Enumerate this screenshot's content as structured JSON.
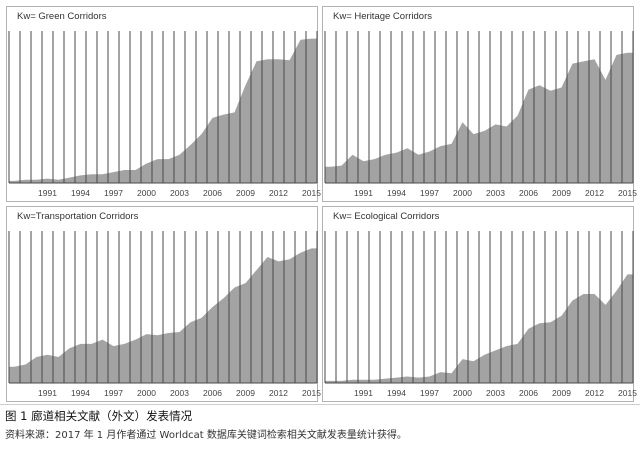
{
  "caption": "图 1  廊道相关文献（外文）发表情况",
  "source": "资料来源：2017 年 1 月作者通过 Worldcat 数据库关键词检索相关文献发表量统计获得。",
  "colors": {
    "fill": "#a3a3a3",
    "bar_line": "#4a4a4a",
    "frame": "#b3b3b3"
  },
  "chart_data": [
    {
      "type": "area",
      "title": "Kw= Green Corridors",
      "x": [
        1988,
        1989,
        1990,
        1991,
        1992,
        1993,
        1994,
        1995,
        1996,
        1997,
        1998,
        1999,
        2000,
        2001,
        2002,
        2003,
        2004,
        2005,
        2006,
        2007,
        2008,
        2009,
        2010,
        2011,
        2012,
        2013,
        2014,
        2015
      ],
      "values": [
        2,
        3,
        3,
        4,
        3,
        5,
        7,
        8,
        8,
        10,
        12,
        12,
        18,
        22,
        22,
        26,
        35,
        45,
        60,
        63,
        65,
        90,
        112,
        114,
        114,
        113,
        132,
        133
      ],
      "x_ticks": [
        1991,
        1994,
        1997,
        2000,
        2003,
        2006,
        2009,
        2012,
        2015
      ],
      "ylim": [
        0,
        140
      ],
      "grid": "vertical"
    },
    {
      "type": "area",
      "title": "Kw= Heritage Corridors",
      "x": [
        1988,
        1989,
        1990,
        1991,
        1992,
        1993,
        1994,
        1995,
        1996,
        1997,
        1998,
        1999,
        2000,
        2001,
        2002,
        2003,
        2004,
        2005,
        2006,
        2007,
        2008,
        2009,
        2010,
        2011,
        2012,
        2013,
        2014,
        2015
      ],
      "values": [
        15,
        16,
        26,
        20,
        22,
        26,
        28,
        32,
        26,
        29,
        34,
        36,
        56,
        45,
        48,
        54,
        52,
        62,
        86,
        90,
        85,
        88,
        110,
        112,
        114,
        95,
        118,
        120
      ],
      "x_ticks": [
        1991,
        1994,
        1997,
        2000,
        2003,
        2006,
        2009,
        2012,
        2015
      ],
      "ylim": [
        0,
        140
      ],
      "grid": "vertical"
    },
    {
      "type": "area",
      "title": "Kw=Transportation Corridors",
      "x": [
        1988,
        1989,
        1990,
        1991,
        1992,
        1993,
        1994,
        1995,
        1996,
        1997,
        1998,
        1999,
        2000,
        2001,
        2002,
        2003,
        2004,
        2005,
        2006,
        2007,
        2008,
        2009,
        2010,
        2011,
        2012,
        2013,
        2014,
        2015
      ],
      "values": [
        15,
        17,
        24,
        26,
        24,
        32,
        36,
        36,
        40,
        34,
        36,
        40,
        45,
        44,
        46,
        47,
        56,
        60,
        70,
        78,
        88,
        92,
        104,
        116,
        112,
        114,
        120,
        124
      ],
      "x_ticks": [
        1991,
        1994,
        1997,
        2000,
        2003,
        2006,
        2009,
        2012,
        2015
      ],
      "ylim": [
        0,
        140
      ],
      "grid": "vertical"
    },
    {
      "type": "area",
      "title": "Kw= Ecological Corridors",
      "x": [
        1988,
        1989,
        1990,
        1991,
        1992,
        1993,
        1994,
        1995,
        1996,
        1997,
        1998,
        1999,
        2000,
        2001,
        2002,
        2003,
        2004,
        2005,
        2006,
        2007,
        2008,
        2009,
        2010,
        2011,
        2012,
        2013,
        2014,
        2015
      ],
      "values": [
        2,
        2,
        3,
        3,
        3,
        4,
        5,
        6,
        5,
        6,
        10,
        9,
        22,
        20,
        26,
        30,
        34,
        36,
        50,
        55,
        56,
        62,
        76,
        82,
        82,
        72,
        85,
        100
      ],
      "x_ticks": [
        1991,
        1994,
        1997,
        2000,
        2003,
        2006,
        2009,
        2012,
        2015
      ],
      "ylim": [
        0,
        140
      ],
      "grid": "vertical"
    }
  ]
}
